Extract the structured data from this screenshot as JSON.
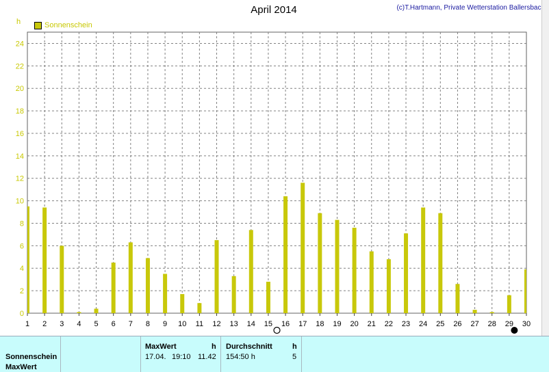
{
  "title": "April 2014",
  "copyright": "(c)T.Hartmann, Private Wetterstation Ballersbach",
  "unit": "h",
  "legend": "Sonnenschein",
  "colors": {
    "bar": "#c8c80a",
    "axis_label": "#c8c800",
    "grid": "#808080",
    "panel_bg": "#c8fcfc"
  },
  "chart_data": {
    "type": "bar",
    "x": [
      1,
      2,
      3,
      4,
      5,
      6,
      7,
      8,
      9,
      10,
      11,
      12,
      13,
      14,
      15,
      16,
      17,
      18,
      19,
      20,
      21,
      22,
      23,
      24,
      25,
      26,
      27,
      28,
      29,
      30
    ],
    "series": [
      {
        "name": "Sonnenschein",
        "values": [
          9.5,
          9.4,
          6.0,
          0.1,
          0.4,
          4.5,
          6.3,
          4.9,
          3.5,
          1.7,
          0.9,
          6.5,
          3.3,
          7.4,
          2.8,
          10.4,
          11.6,
          8.9,
          8.3,
          7.6,
          5.5,
          4.8,
          7.1,
          9.4,
          8.9,
          2.6,
          0.3,
          0.1,
          1.6,
          3.9
        ]
      }
    ],
    "ylim": [
      0,
      25
    ],
    "yticks": [
      0,
      2,
      4,
      6,
      8,
      10,
      12,
      14,
      16,
      18,
      20,
      22,
      24
    ],
    "grid": true,
    "legend_position": "top-left",
    "moon_markers": {
      "full_moon_day": 15,
      "new_moon_day": 29
    }
  },
  "panel": {
    "row1_label": "Sonnenschein",
    "row2_label": "MaxWert",
    "maxwert_header": "MaxWert",
    "maxwert_unit": "h",
    "maxwert_date": "17.04.",
    "maxwert_time": "19:10",
    "maxwert_value": "11.42",
    "durchschnitt_header": "Durchschnitt",
    "durchschnitt_unit": "h",
    "durchschnitt_value": "154:50 h",
    "durchschnitt_count": "5"
  }
}
